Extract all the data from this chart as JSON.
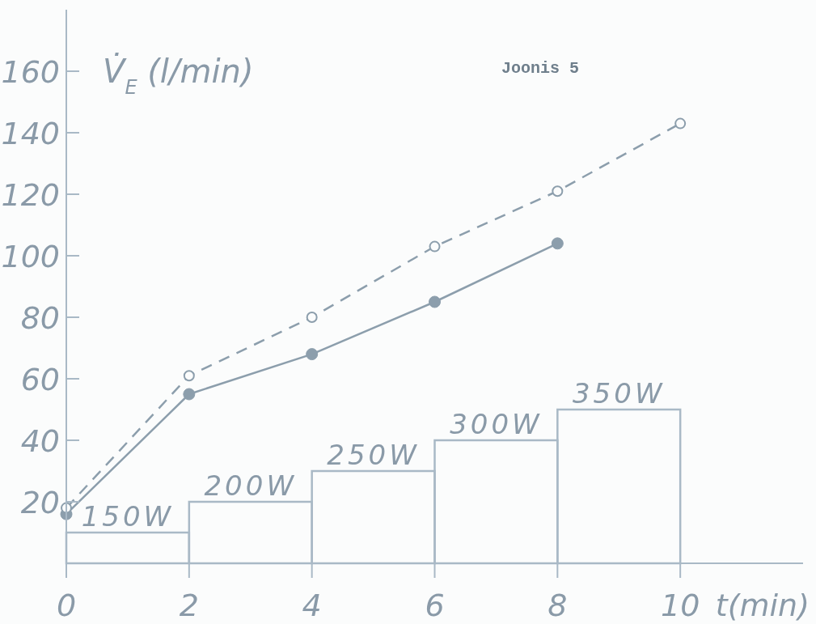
{
  "chart_data": {
    "type": "line",
    "title": "Joonis 5",
    "xlabel": "t(min)",
    "ylabel": "V̇$_{E}$ (l/min)",
    "x": [
      0,
      2,
      4,
      6,
      8,
      10
    ],
    "series": [
      {
        "color": "#8c9eac",
        "line_style": "dashed",
        "marker": "circle",
        "values": [
          18,
          61,
          80,
          103,
          121,
          143
        ]
      },
      {
        "color": "#8c9eac",
        "line_style": "solid",
        "marker": "circle",
        "x": [
          0,
          2,
          4,
          6,
          8
        ],
        "values": [
          16,
          55,
          68,
          85,
          104
        ]
      },
      {
        "type": "histogram",
        "color": "#a9b9c6",
        "bins": [
          0,
          2,
          4,
          6,
          8,
          10
        ],
        "values": [
          10,
          20,
          30,
          40,
          50
        ]
      }
    ],
    "annotations": [
      {
        "text": "150W",
        "x": 1,
        "y": 10
      },
      {
        "text": "200W",
        "x": 3,
        "y": 20
      },
      {
        "text": "250W",
        "x": 5,
        "y": 30
      },
      {
        "text": "300W",
        "x": 7,
        "y": 40
      },
      {
        "text": "350W",
        "x": 9,
        "y": 50
      }
    ],
    "xlim": [
      0,
      12
    ],
    "ylim": [
      0,
      180
    ],
    "xticks": [
      0,
      2,
      4,
      6,
      8,
      10
    ],
    "yticks": [
      20,
      40,
      60,
      80,
      100,
      120,
      140,
      160
    ],
    "grid": false
  }
}
